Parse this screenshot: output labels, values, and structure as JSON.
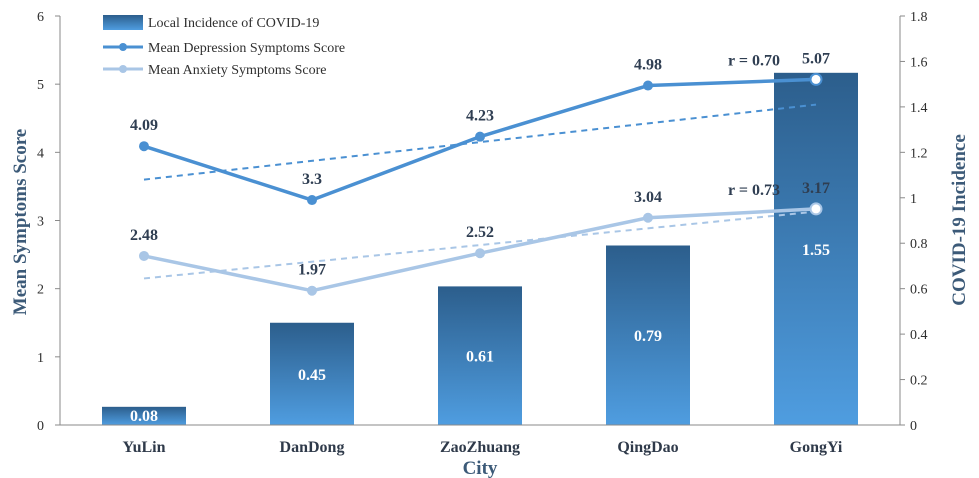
{
  "chart_data": {
    "type": "bar",
    "categories": [
      "YuLin",
      "DanDong",
      "ZaoZhuang",
      "QingDao",
      "GongYi"
    ],
    "xlabel": "City",
    "ylabel": "Mean Symptoms Score",
    "y2label": "COVID-19  Incidence",
    "ylim": [
      0,
      6
    ],
    "y2lim": [
      0,
      1.8
    ],
    "yticks": [
      "0",
      "1",
      "2",
      "3",
      "4",
      "5",
      "6"
    ],
    "y2ticks": [
      "0",
      "0.2",
      "0.4",
      "0.6",
      "0.8",
      "1",
      "1.2",
      "1.4",
      "1.6",
      "1.8"
    ],
    "legend_position": "top-left",
    "series": [
      {
        "name": "Local Incidence of COVID-19",
        "kind": "bar",
        "axis": "right",
        "values": [
          0.08,
          0.45,
          0.61,
          0.79,
          1.55
        ],
        "labels": [
          "0.08",
          "0.45",
          "0.61",
          "0.79",
          "1.55"
        ],
        "color_top": "#2c5e8c",
        "color_bottom": "#4f9de0"
      },
      {
        "name": "Mean Depression Symptoms Score",
        "kind": "line",
        "axis": "left",
        "values": [
          4.09,
          3.3,
          4.23,
          4.98,
          5.07
        ],
        "labels": [
          "4.09",
          "3.3",
          "4.23",
          "4.98",
          "5.07"
        ],
        "color": "#4a90d2",
        "trend": [
          3.6,
          4.7
        ],
        "r_label": "r = 0.70"
      },
      {
        "name": "Mean Anxiety Symptoms Score",
        "kind": "line",
        "axis": "left",
        "values": [
          2.48,
          1.97,
          2.52,
          3.04,
          3.17
        ],
        "labels": [
          "2.48",
          "1.97",
          "2.52",
          "3.04",
          "3.17"
        ],
        "color": "#a9c6e6",
        "trend": [
          2.15,
          3.13
        ],
        "r_label": "r = 0.73"
      }
    ]
  }
}
